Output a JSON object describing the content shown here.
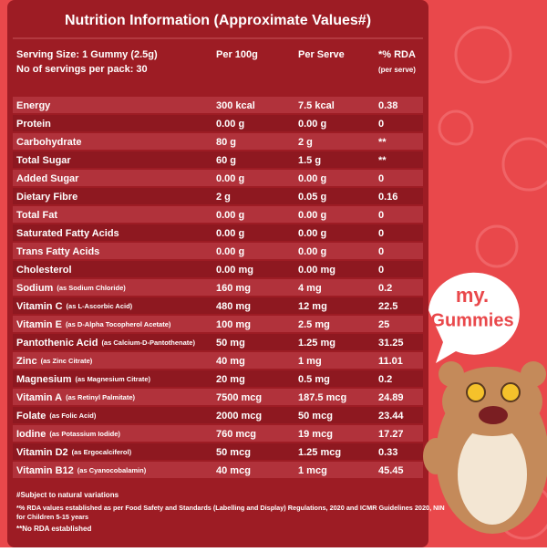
{
  "title": "Nutrition Information (Approximate Values#)",
  "header": {
    "serving_size": "Serving Size: 1 Gummy (2.5g)",
    "servings_per_pack": "No of servings per pack: 30",
    "per_100g": "Per 100g",
    "per_serve": "Per Serve",
    "rda": "*% RDA",
    "rda_note": "(per serve)"
  },
  "table": {
    "rows": [
      [
        "Energy",
        "",
        "300 kcal",
        "7.5 kcal",
        "0.38"
      ],
      [
        "Protein",
        "",
        "0.00 g",
        "0.00 g",
        "0"
      ],
      [
        "Carbohydrate",
        "",
        "80 g",
        "2 g",
        "**"
      ],
      [
        "Total Sugar",
        "",
        "60 g",
        "1.5 g",
        "**"
      ],
      [
        "Added Sugar",
        "",
        "0.00 g",
        "0.00 g",
        "0"
      ],
      [
        "Dietary Fibre",
        "",
        "2 g",
        "0.05 g",
        "0.16"
      ],
      [
        "Total Fat",
        "",
        "0.00 g",
        "0.00 g",
        "0"
      ],
      [
        "Saturated Fatty Acids",
        "",
        "0.00 g",
        "0.00 g",
        "0"
      ],
      [
        "Trans Fatty Acids",
        "",
        "0.00 g",
        "0.00 g",
        "0"
      ],
      [
        "Cholesterol",
        "",
        "0.00 mg",
        "0.00 mg",
        "0"
      ],
      [
        "Sodium",
        "(as Sodium Chloride)",
        "160 mg",
        "4 mg",
        "0.2"
      ],
      [
        "Vitamin C",
        "(as L-Ascorbic Acid)",
        "480 mg",
        "12 mg",
        "22.5"
      ],
      [
        "Vitamin E",
        "(as D-Alpha Tocopherol Acetate)",
        "100 mg",
        "2.5 mg",
        "25"
      ],
      [
        "Pantothenic Acid",
        "(as Calcium-D-Pantothenate)",
        "50 mg",
        "1.25 mg",
        "31.25"
      ],
      [
        "Zinc",
        "(as Zinc Citrate)",
        "40 mg",
        "1 mg",
        "11.01"
      ],
      [
        "Magnesium",
        "(as Magnesium Citrate)",
        "20 mg",
        "0.5 mg",
        "0.2"
      ],
      [
        "Vitamin A",
        "(as Retinyl Palmitate)",
        "7500 mcg",
        "187.5 mcg",
        "24.89"
      ],
      [
        "Folate",
        "(as Folic Acid)",
        "2000 mcg",
        "50 mcg",
        "23.44"
      ],
      [
        "Iodine",
        "(as Potassium Iodide)",
        "760 mcg",
        "19 mcg",
        "17.27"
      ],
      [
        "Vitamin D2",
        "(as Ergocalciferol)",
        "50 mcg",
        "1.25 mcg",
        "0.33"
      ],
      [
        "Vitamin B12",
        "(as Cyanocobalamin)",
        "40 mcg",
        "1 mcg",
        "45.45"
      ]
    ]
  },
  "footnotes": [
    "#Subject to natural variations",
    "*% RDA values established as per Food Safety and Standards (Labelling and Display) Regulations, 2020 and ICMR Guidelines 2020, NIN",
    "for Children 5-15 years",
    "**No RDA established"
  ],
  "logo": {
    "line1": "my.",
    "line2": "Gummies"
  }
}
